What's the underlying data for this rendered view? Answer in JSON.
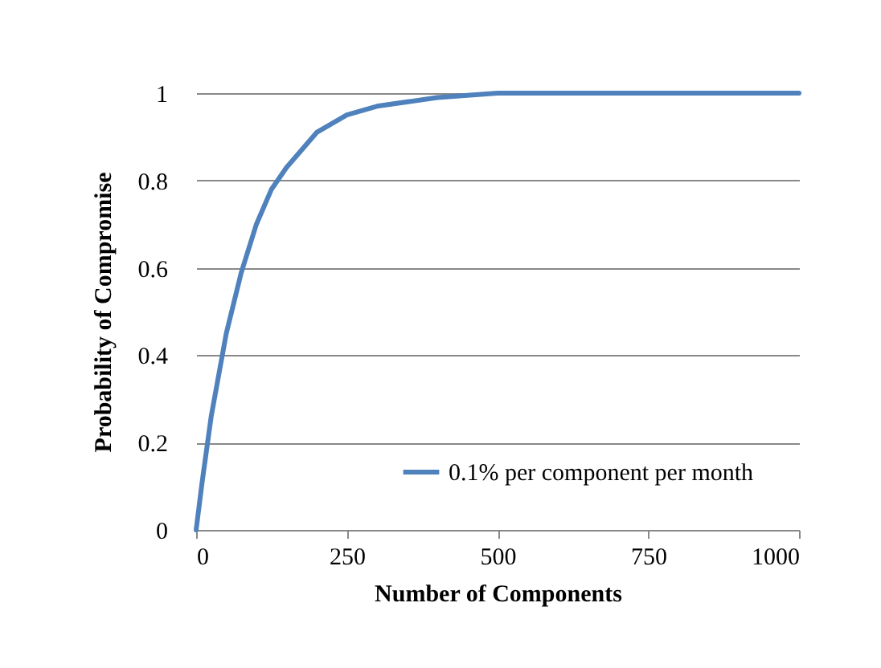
{
  "chart_data": {
    "type": "line",
    "xlabel": "Number of Components",
    "ylabel": "Probability of Compromise",
    "x": [
      0,
      10,
      25,
      50,
      75,
      100,
      125,
      150,
      200,
      250,
      300,
      400,
      500,
      600,
      750,
      1000
    ],
    "series": [
      {
        "name": "0.1% per component per month",
        "color": "#4f81bd",
        "values": [
          0,
          0.11,
          0.26,
          0.45,
          0.59,
          0.7,
          0.78,
          0.83,
          0.91,
          0.95,
          0.97,
          0.99,
          1,
          1,
          1,
          1
        ]
      }
    ],
    "xlim": [
      0,
      1000
    ],
    "xticks": [
      0,
      250,
      500,
      750,
      1000
    ],
    "ylim": [
      0,
      1
    ],
    "yticks": [
      0,
      0.2,
      0.4,
      0.6,
      0.8,
      1
    ],
    "grid": "y",
    "legend": "bottom right",
    "marker": "none",
    "line_style": "solid"
  }
}
